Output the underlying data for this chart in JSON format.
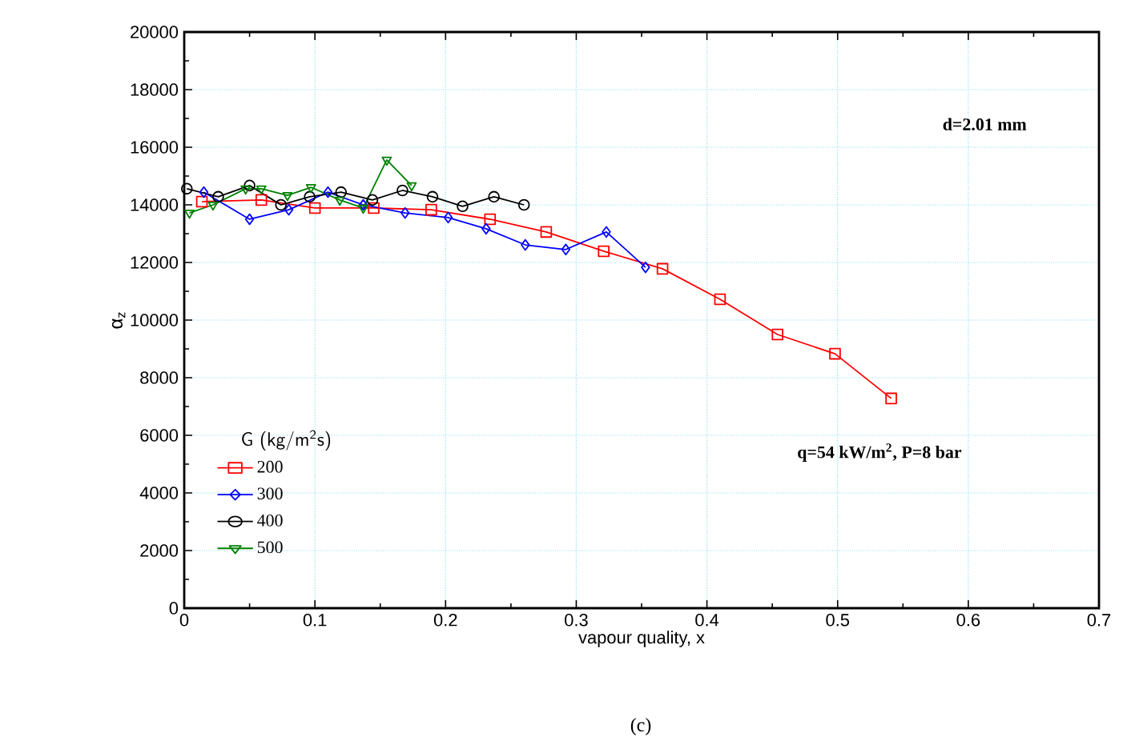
{
  "chart_data": {
    "type": "line",
    "xlabel": "vapour quality, x",
    "ylabel": "α$_{z}$",
    "legend_title": "G (kg/m$^{2}$s)",
    "xlim": [
      0,
      0.7
    ],
    "xticks": [
      0,
      0.1,
      0.2,
      0.3,
      0.4,
      0.5,
      0.6,
      0.7
    ],
    "ylim": [
      0,
      20000
    ],
    "yticks": [
      0,
      2000,
      4000,
      6000,
      8000,
      10000,
      12000,
      14000,
      16000,
      18000,
      20000
    ],
    "grid": true,
    "legend": "left",
    "annotations": [
      "d=2.01 mm",
      "q=54 kW/m$^{2}$, P=8 bar",
      "(c)"
    ],
    "series": [
      {
        "name": "200",
        "color": "#ff0000",
        "marker": "square",
        "x": [
          0.0135,
          0.059,
          0.1,
          0.145,
          0.189,
          0.234,
          0.277,
          0.321,
          0.366,
          0.41,
          0.454,
          0.498,
          0.541
        ],
        "values": [
          14110,
          14170,
          13890,
          13890,
          13830,
          13500,
          13060,
          12390,
          11780,
          10720,
          9500,
          8830,
          7280
        ]
      },
      {
        "name": "300",
        "color": "#0000ff",
        "marker": "diamond",
        "x": [
          0.015,
          0.05,
          0.08,
          0.11,
          0.137,
          0.169,
          0.202,
          0.231,
          0.261,
          0.292,
          0.323,
          0.353
        ],
        "values": [
          14440,
          13500,
          13830,
          14440,
          14000,
          13720,
          13560,
          13170,
          12610,
          12450,
          13060,
          11830
        ]
      },
      {
        "name": "400",
        "color": "#000000",
        "marker": "circle",
        "x": [
          0.002,
          0.026,
          0.05,
          0.074,
          0.096,
          0.12,
          0.144,
          0.167,
          0.19,
          0.213,
          0.237,
          0.26
        ],
        "values": [
          14560,
          14280,
          14670,
          14000,
          14280,
          14440,
          14170,
          14500,
          14280,
          13950,
          14280,
          14000
        ]
      },
      {
        "name": "500",
        "color": "#008000",
        "marker": "triangle",
        "x": [
          0.004,
          0.022,
          0.047,
          0.059,
          0.079,
          0.097,
          0.119,
          0.137,
          0.155,
          0.174
        ],
        "values": [
          13720,
          14000,
          14560,
          14560,
          14330,
          14610,
          14170,
          13890,
          15560,
          14670
        ]
      }
    ]
  }
}
